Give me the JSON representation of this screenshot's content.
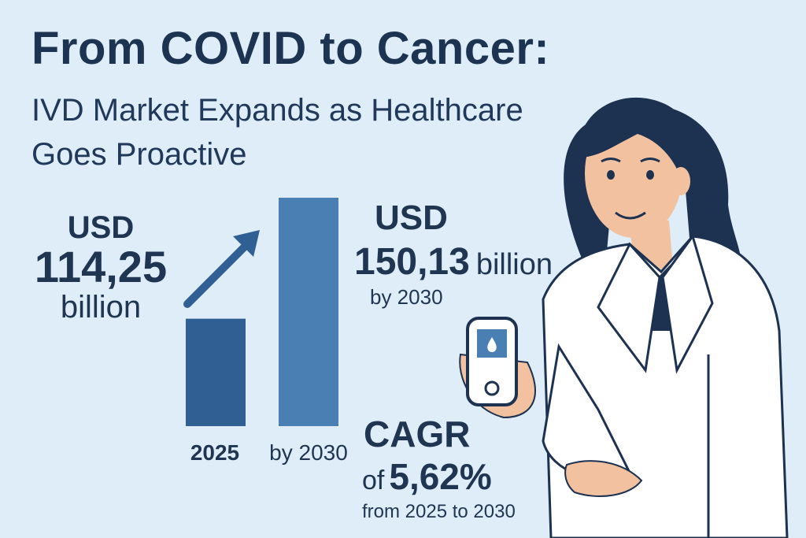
{
  "title": {
    "line1": "From COVID to Cancer:",
    "line2": "IVD Market Expands as Healthcare Goes Proactive"
  },
  "chart_data": {
    "type": "bar",
    "categories": [
      "2025",
      "by 2030"
    ],
    "values": [
      114.25,
      150.13
    ],
    "unit": "USD billion",
    "ylim": [
      0,
      160
    ],
    "title": "From COVID to Cancer: IVD Market Expands as Healthcare Goes Proactive",
    "xlabel": "",
    "ylabel": ""
  },
  "left_stat": {
    "currency": "USD",
    "value": "114,25",
    "unit": "billion"
  },
  "right_stat": {
    "currency": "USD",
    "value": "150,13",
    "unit": "billion",
    "period": "by 2030"
  },
  "cagr": {
    "label": "CAGR",
    "prefix": "of",
    "value": "5,62%",
    "period": "from 2025 to 2030"
  },
  "colors": {
    "background": "#deedf8",
    "text": "#1f3552",
    "bar_2025": "#2f5f93",
    "bar_2030": "#4a7fb3",
    "arrow": "#2f5f93"
  }
}
